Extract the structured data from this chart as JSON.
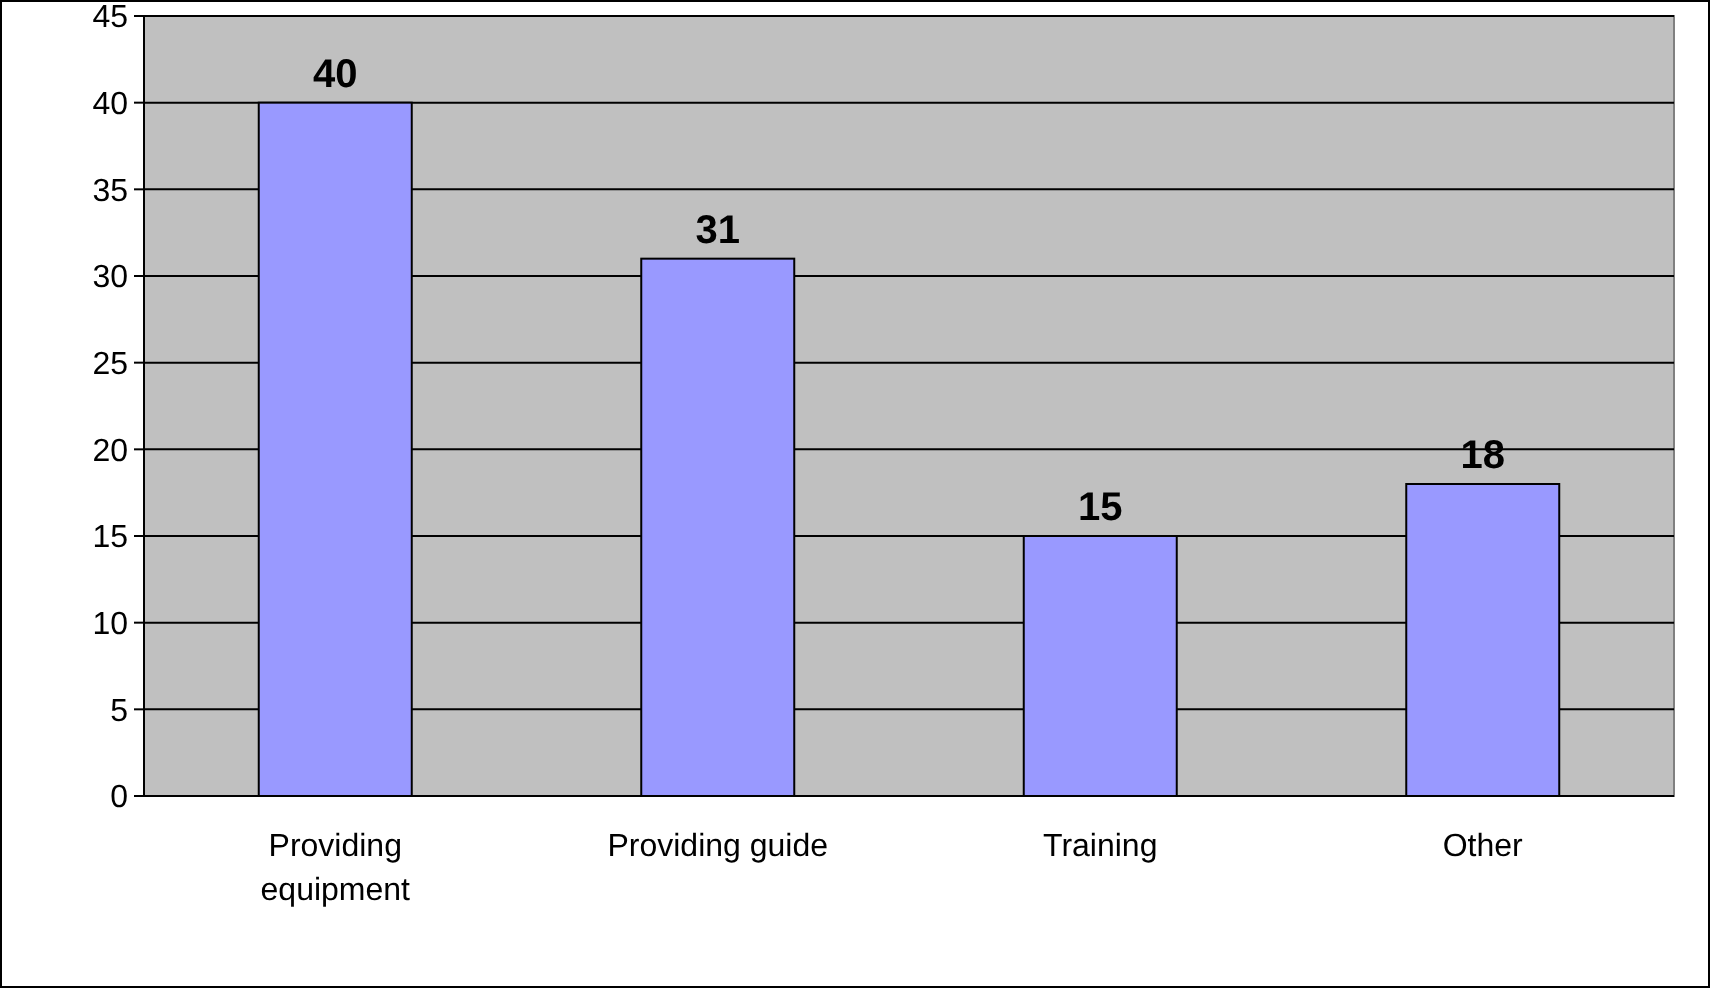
{
  "chart_data": {
    "type": "bar",
    "categories": [
      "Providing equipment",
      "Providing guide",
      "Training",
      "Other"
    ],
    "values": [
      40,
      31,
      15,
      18
    ],
    "color": "#9999ff",
    "ylim": [
      0,
      45
    ],
    "yticks": [
      0,
      5,
      10,
      15,
      20,
      25,
      30,
      35,
      40,
      45
    ],
    "grid": "y",
    "data_labels": true
  }
}
